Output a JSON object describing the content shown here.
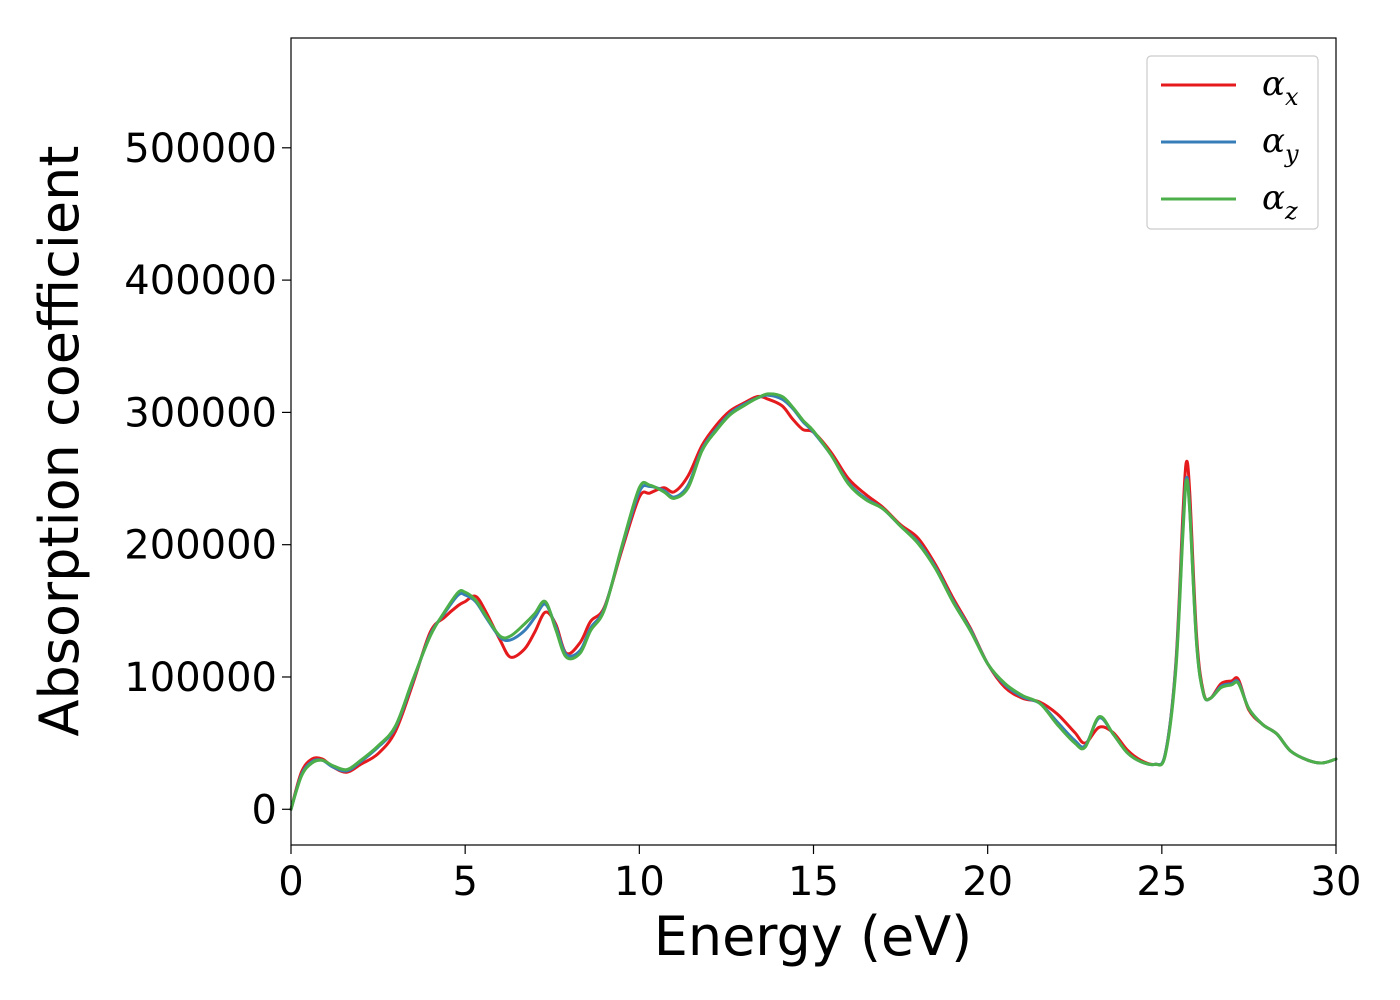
{
  "chart_data": {
    "type": "line",
    "title": "",
    "xlabel": "Energy (eV)",
    "ylabel": "Absorption coefficient",
    "xlim": [
      0,
      30
    ],
    "ylim": [
      -27000,
      583000
    ],
    "xticks": [
      0,
      5,
      10,
      15,
      20,
      25,
      30
    ],
    "yticks": [
      0,
      100000,
      200000,
      300000,
      400000,
      500000
    ],
    "grid": false,
    "legend_position": "top-right",
    "series": [
      {
        "name": "α",
        "subscript": "x",
        "color": "#e41a1c",
        "x": [
          0,
          0.3,
          0.6,
          0.9,
          1.2,
          1.6,
          2.0,
          2.5,
          3.0,
          3.5,
          4.0,
          4.4,
          4.8,
          5.0,
          5.3,
          5.6,
          6.0,
          6.3,
          6.7,
          7.0,
          7.3,
          7.6,
          7.9,
          8.3,
          8.6,
          9.0,
          9.5,
          10.0,
          10.3,
          10.7,
          11.0,
          11.4,
          11.8,
          12.2,
          12.6,
          13.0,
          13.4,
          13.7,
          14.1,
          14.4,
          14.7,
          15.0,
          15.5,
          16.0,
          16.5,
          17.0,
          17.5,
          18.0,
          18.5,
          19.0,
          19.5,
          20.0,
          20.5,
          21.0,
          21.5,
          22.0,
          22.5,
          22.8,
          23.2,
          23.6,
          24.0,
          24.4,
          24.8,
          25.1,
          25.4,
          25.6,
          25.7,
          25.8,
          26.0,
          26.2,
          26.4,
          26.7,
          27.0,
          27.2,
          27.5,
          27.9,
          28.3,
          28.7,
          29.2,
          29.6,
          30.0
        ],
        "y": [
          0,
          28000,
          38000,
          38000,
          32000,
          28000,
          34000,
          42000,
          59000,
          95000,
          134000,
          145000,
          154000,
          157000,
          161000,
          149000,
          128000,
          115000,
          121000,
          134000,
          149000,
          140000,
          118000,
          126000,
          142000,
          153000,
          196000,
          236000,
          239000,
          243000,
          240000,
          252000,
          275000,
          290000,
          301000,
          307000,
          312000,
          310000,
          305000,
          295000,
          287000,
          285000,
          270000,
          250000,
          238000,
          228000,
          215000,
          205000,
          185000,
          160000,
          137000,
          110000,
          92000,
          84000,
          81000,
          72000,
          58000,
          50000,
          62000,
          58000,
          45000,
          37000,
          34000,
          42000,
          110000,
          220000,
          262000,
          240000,
          130000,
          88000,
          84000,
          95000,
          97000,
          98000,
          75000,
          64000,
          57000,
          44000,
          37000,
          35000,
          38000
        ]
      },
      {
        "name": "α",
        "subscript": "y",
        "color": "#377eb8",
        "x": [
          0,
          0.3,
          0.6,
          0.9,
          1.2,
          1.6,
          2.0,
          2.5,
          3.0,
          3.5,
          4.0,
          4.4,
          4.8,
          5.0,
          5.3,
          5.6,
          6.0,
          6.3,
          6.7,
          7.0,
          7.3,
          7.6,
          7.9,
          8.3,
          8.6,
          9.0,
          9.5,
          10.0,
          10.3,
          10.7,
          11.0,
          11.4,
          11.8,
          12.2,
          12.6,
          13.0,
          13.4,
          13.7,
          14.1,
          14.4,
          14.7,
          15.0,
          15.5,
          16.0,
          16.5,
          17.0,
          17.5,
          18.0,
          18.5,
          19.0,
          19.5,
          20.0,
          20.5,
          21.0,
          21.5,
          22.0,
          22.5,
          22.8,
          23.2,
          23.6,
          24.0,
          24.4,
          24.8,
          25.1,
          25.4,
          25.6,
          25.7,
          25.8,
          26.0,
          26.2,
          26.4,
          26.7,
          27.0,
          27.2,
          27.5,
          27.9,
          28.3,
          28.7,
          29.2,
          29.6,
          30.0
        ],
        "y": [
          0,
          26000,
          36000,
          37000,
          32000,
          29000,
          36000,
          47000,
          62000,
          97000,
          132000,
          148000,
          162000,
          162000,
          157000,
          145000,
          130000,
          128000,
          135000,
          145000,
          155000,
          138000,
          117000,
          120000,
          137000,
          152000,
          198000,
          240000,
          244000,
          241000,
          236000,
          245000,
          272000,
          287000,
          299000,
          306000,
          311000,
          313000,
          310000,
          303000,
          293000,
          285000,
          268000,
          247000,
          235000,
          227000,
          214000,
          202000,
          183000,
          158000,
          136000,
          110000,
          94000,
          85000,
          80000,
          66000,
          52000,
          48000,
          69000,
          57000,
          43000,
          36000,
          34000,
          42000,
          108000,
          210000,
          250000,
          228000,
          125000,
          87000,
          84000,
          93000,
          95000,
          96000,
          76000,
          64000,
          57000,
          44000,
          37000,
          35000,
          38000
        ]
      },
      {
        "name": "α",
        "subscript": "z",
        "color": "#4daf4a",
        "x": [
          0,
          0.3,
          0.6,
          0.9,
          1.2,
          1.6,
          2.0,
          2.5,
          3.0,
          3.5,
          4.0,
          4.4,
          4.8,
          5.0,
          5.3,
          5.6,
          6.0,
          6.3,
          6.7,
          7.0,
          7.3,
          7.6,
          7.9,
          8.3,
          8.6,
          9.0,
          9.5,
          10.0,
          10.3,
          10.7,
          11.0,
          11.4,
          11.8,
          12.2,
          12.6,
          13.0,
          13.4,
          13.7,
          14.1,
          14.4,
          14.7,
          15.0,
          15.5,
          16.0,
          16.5,
          17.0,
          17.5,
          18.0,
          18.5,
          19.0,
          19.5,
          20.0,
          20.5,
          21.0,
          21.5,
          22.0,
          22.5,
          22.8,
          23.2,
          23.6,
          24.0,
          24.4,
          24.8,
          25.1,
          25.4,
          25.6,
          25.7,
          25.8,
          26.0,
          26.2,
          26.4,
          26.7,
          27.0,
          27.2,
          27.5,
          27.9,
          28.3,
          28.7,
          29.2,
          29.6,
          30.0
        ],
        "y": [
          0,
          25000,
          35000,
          37000,
          33000,
          30000,
          37000,
          48000,
          63000,
          98000,
          131000,
          149000,
          164000,
          164000,
          158000,
          146000,
          131000,
          131000,
          140000,
          148000,
          157000,
          136000,
          115000,
          118000,
          135000,
          151000,
          199000,
          243000,
          245000,
          240000,
          235000,
          243000,
          271000,
          286000,
          298000,
          305000,
          311000,
          314000,
          312000,
          304000,
          294000,
          286000,
          268000,
          246000,
          234000,
          227000,
          214000,
          201000,
          182000,
          157000,
          135000,
          110000,
          95000,
          86000,
          80000,
          64000,
          50000,
          47000,
          70000,
          57000,
          43000,
          36000,
          34000,
          41000,
          105000,
          205000,
          248000,
          226000,
          124000,
          87000,
          84000,
          92000,
          94000,
          95000,
          76000,
          64000,
          57000,
          44000,
          37000,
          35000,
          38000
        ]
      }
    ]
  }
}
